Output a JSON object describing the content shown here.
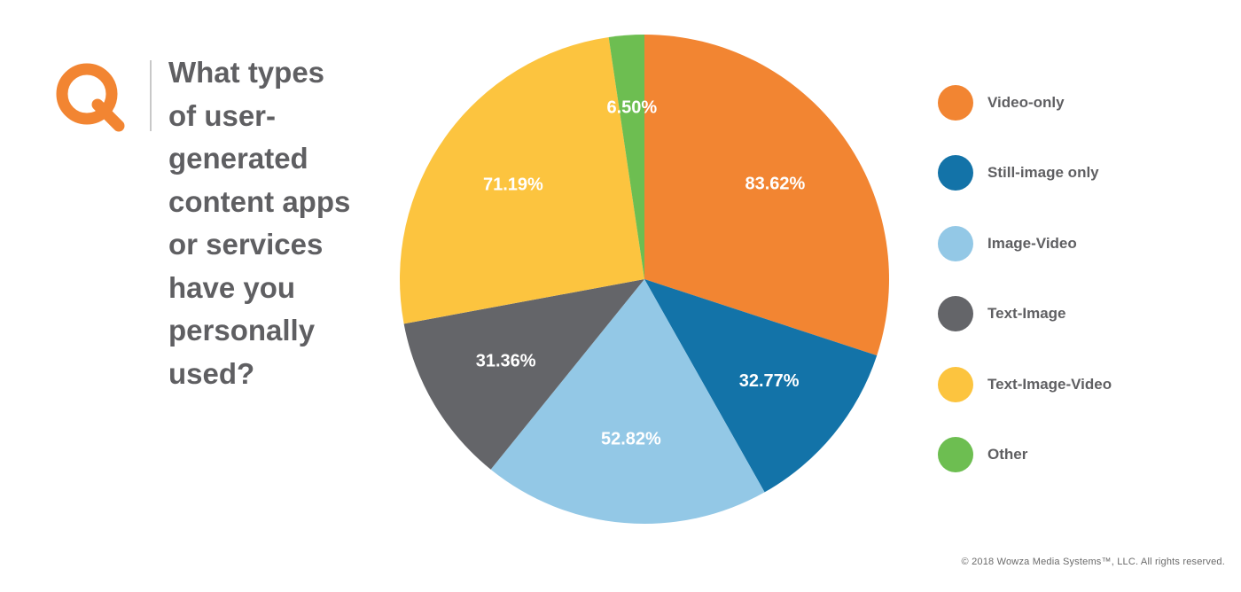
{
  "question": "What types\nof user-\ngenerated\ncontent apps\nor services\nhave you\npersonally\nused?",
  "logo_icon": "q-logo-icon",
  "brand_color": "#F28532",
  "copyright": "© 2018 Wowza Media Systems™, LLC. All rights reserved.",
  "chart_data": {
    "type": "pie",
    "title": "What types of user-generated content apps or services have you personally used?",
    "start_angle_deg": 0,
    "direction": "clockwise",
    "legend_position": "right",
    "slices": [
      {
        "label": "Video-only",
        "value": 83.62,
        "display": "83.62%",
        "color": "#F28532"
      },
      {
        "label": "Still-image only",
        "value": 32.77,
        "display": "32.77%",
        "color": "#1373A8"
      },
      {
        "label": "Image-Video",
        "value": 52.82,
        "display": "52.82%",
        "color": "#93C8E6"
      },
      {
        "label": "Text-Image",
        "value": 31.36,
        "display": "31.36%",
        "color": "#646569"
      },
      {
        "label": "Text-Image-Video",
        "value": 71.19,
        "display": "71.19%",
        "color": "#FCC43F"
      },
      {
        "label": "Other",
        "value": 6.5,
        "display": "6.50%",
        "color": "#6DBE51"
      }
    ]
  }
}
